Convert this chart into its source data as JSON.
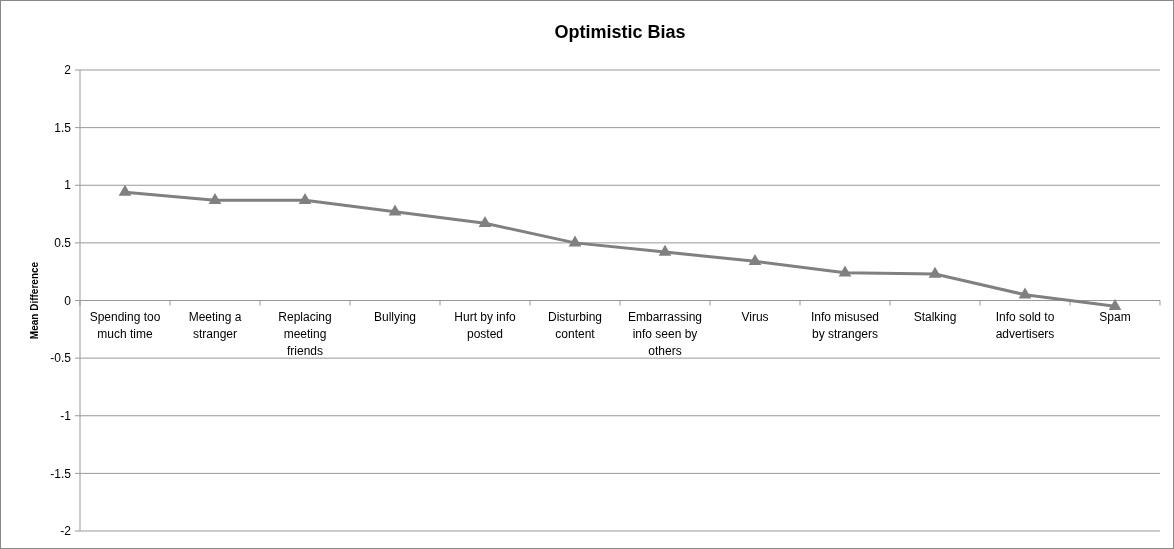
{
  "chart_data": {
    "type": "line",
    "title": "Optimistic Bias",
    "ylabel": "Mean Difference",
    "categories": [
      "Spending too much time",
      "Meeting a stranger",
      "Replacing meeting friends",
      "Bullying",
      "Hurt by info posted",
      "Disturbing content",
      "Embarrassing info seen by others",
      "Virus",
      "Info misused by strangers",
      "Stalking",
      "Info sold to advertisers",
      "Spam"
    ],
    "series": [
      {
        "color": "#808080",
        "values": [
          0.94,
          0.87,
          0.87,
          0.77,
          0.67,
          0.5,
          0.42,
          0.34,
          0.24,
          0.23,
          0.05,
          -0.05
        ]
      }
    ],
    "ylim": [
      -2,
      2
    ],
    "yticks": [
      -2,
      -1.5,
      -1,
      -0.5,
      0,
      0.5,
      1,
      1.5,
      2
    ],
    "grid": "y",
    "marker": "triangle",
    "line_style": "solid"
  }
}
